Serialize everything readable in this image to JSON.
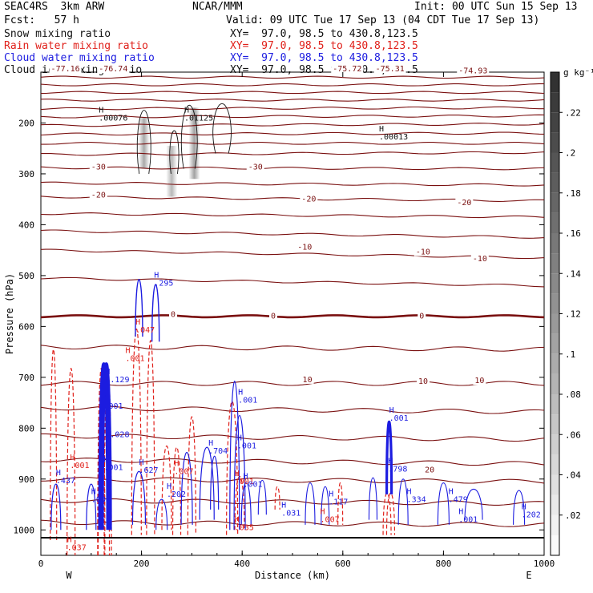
{
  "header": {
    "model": "SEAC4RS  3km ARW",
    "org": "NCAR/MMM",
    "init": "Init: 00 UTC Sun 15 Sep 13",
    "fcst": "Fcst:   57 h",
    "valid": "Valid: 09 UTC Tue 17 Sep 13 (04 CDT Tue 17 Sep 13)",
    "snow_label": "Snow mixing ratio",
    "snow_xy": "XY=  97.0, 98.5 to 430.8,123.5",
    "rain_label": "Rain water mixing ratio",
    "rain_xy": "XY=  97.0, 98.5 to 430.8,123.5",
    "cloud_label": "Cloud water mixing ratio",
    "cloud_xy": "XY=  97.0, 98.5 to 430.8,123.5",
    "ice_label": "Cloud ice mixing ratio",
    "ice_xy": "XY=  97.0, 98.5 to 430.8,123.5"
  },
  "colors": {
    "temperature": "#7a1010",
    "rain": "#e0201a",
    "cloud": "#1c1ce0",
    "ice": "#111111",
    "snow_shade": "#505050"
  },
  "chart_data": {
    "type": "cross-section",
    "xlabel": "Distance (km)",
    "ylabel": "Pressure (hPa)",
    "xlim": [
      0,
      1000
    ],
    "ylim": [
      1050,
      100
    ],
    "x_ticks": [
      "0",
      "200",
      "400",
      "600",
      "800",
      "1000"
    ],
    "y_ticks": [
      "200",
      "300",
      "400",
      "500",
      "600",
      "700",
      "800",
      "900",
      "1000"
    ],
    "direction_left": "W",
    "direction_right": "E",
    "colorbar": {
      "unit": "g kg⁻¹",
      "ticks": [
        ".22",
        ".2",
        ".18",
        ".16",
        ".14",
        ".12",
        ".1",
        ".08",
        ".06",
        ".04",
        ".02"
      ]
    },
    "temperature_labels": [
      {
        "text": "-77.16",
        "x": 20,
        "p": 97
      },
      {
        "text": "-76.74",
        "x": 115,
        "p": 97
      },
      {
        "text": "-75.72",
        "x": 580,
        "p": 97
      },
      {
        "text": "-75.31",
        "x": 665,
        "p": 97
      },
      {
        "text": "-74.93",
        "x": 830,
        "p": 101
      },
      {
        "text": "-30",
        "x": 100,
        "p": 290
      },
      {
        "text": "-30",
        "x": 412,
        "p": 290
      },
      {
        "text": "-20",
        "x": 100,
        "p": 345
      },
      {
        "text": "-20",
        "x": 518,
        "p": 353
      },
      {
        "text": "-20",
        "x": 827,
        "p": 360
      },
      {
        "text": "-10",
        "x": 510,
        "p": 447
      },
      {
        "text": "-10",
        "x": 745,
        "p": 457
      },
      {
        "text": "-10",
        "x": 858,
        "p": 470
      },
      {
        "text": "0",
        "x": 258,
        "p": 580
      },
      {
        "text": "0",
        "x": 457,
        "p": 583
      },
      {
        "text": "0",
        "x": 752,
        "p": 583
      },
      {
        "text": "10",
        "x": 520,
        "p": 708
      },
      {
        "text": "10",
        "x": 750,
        "p": 711
      },
      {
        "text": "10",
        "x": 862,
        "p": 710
      },
      {
        "text": "20",
        "x": 763,
        "p": 885
      }
    ],
    "ice_maxima": [
      {
        "label": ".00076",
        "x": 115,
        "p": 195
      },
      {
        "label": ".01125",
        "x": 285,
        "p": 195
      },
      {
        "label": ".00013",
        "x": 672,
        "p": 232
      }
    ],
    "rain_maxima": [
      {
        "label": ".047",
        "x": 188,
        "p": 612
      },
      {
        "label": ".001",
        "x": 168,
        "p": 668
      },
      {
        "label": ".001",
        "x": 58,
        "p": 878
      },
      {
        "label": ".037",
        "x": 52,
        "p": 1040
      },
      {
        "label": ".007",
        "x": 265,
        "p": 890
      },
      {
        "label": ".001",
        "x": 385,
        "p": 910
      },
      {
        "label": ".035",
        "x": 385,
        "p": 1000
      },
      {
        "label": ".007",
        "x": 555,
        "p": 985
      }
    ],
    "cloud_maxima": [
      {
        "label": ".295",
        "x": 225,
        "p": 520
      },
      {
        "label": "1.129",
        "x": 128,
        "p": 710
      },
      {
        "label": ".001",
        "x": 125,
        "p": 762
      },
      {
        "label": "1.028",
        "x": 128,
        "p": 818
      },
      {
        "label": ".001",
        "x": 125,
        "p": 882
      },
      {
        "label": ".627",
        "x": 195,
        "p": 888
      },
      {
        "label": ".202",
        "x": 250,
        "p": 935
      },
      {
        "label": ".704",
        "x": 333,
        "p": 850
      },
      {
        "label": ".001",
        "x": 392,
        "p": 750
      },
      {
        "label": ".001",
        "x": 390,
        "p": 840
      },
      {
        "label": ".001",
        "x": 402,
        "p": 915
      },
      {
        "label": ".031",
        "x": 478,
        "p": 972
      },
      {
        "label": ".117",
        "x": 572,
        "p": 950
      },
      {
        "label": ".798",
        "x": 690,
        "p": 885
      },
      {
        "label": ".001",
        "x": 692,
        "p": 785
      },
      {
        "label": ".334",
        "x": 727,
        "p": 945
      },
      {
        "label": ".479",
        "x": 810,
        "p": 945
      },
      {
        "label": ".001",
        "x": 830,
        "p": 985
      },
      {
        "label": ".202",
        "x": 955,
        "p": 975
      },
      {
        "label": ".437",
        "x": 30,
        "p": 908
      },
      {
        "label": ".001",
        "x": 100,
        "p": 945
      }
    ]
  }
}
